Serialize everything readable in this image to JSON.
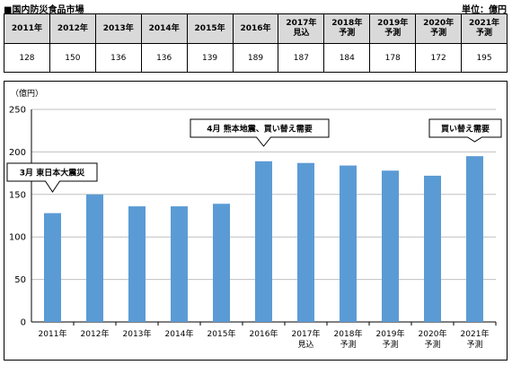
{
  "header": {
    "title": "■国内防災食品市場",
    "unit": "単位：億円"
  },
  "table": {
    "years": [
      "2011年",
      "2012年",
      "2013年",
      "2014年",
      "2015年",
      "2016年",
      "2017年\n見込",
      "2018年\n予測",
      "2019年\n予測",
      "2020年\n予測",
      "2021年\n予測"
    ],
    "values": [
      "128",
      "150",
      "136",
      "136",
      "139",
      "189",
      "187",
      "184",
      "178",
      "172",
      "195"
    ]
  },
  "chart_data": {
    "type": "bar",
    "ylabel": "（億円）",
    "ylim": [
      0,
      250
    ],
    "yticks": [
      0,
      50,
      100,
      150,
      200,
      250
    ],
    "grid": true,
    "legend": "none",
    "bar_color": "#5b9bd5",
    "categories": [
      "2011年",
      "2012年",
      "2013年",
      "2014年",
      "2015年",
      "2016年",
      "2017年\n見込",
      "2018年\n予測",
      "2019年\n予測",
      "2020年\n予測",
      "2021年\n予測"
    ],
    "values": [
      128,
      150,
      136,
      136,
      139,
      189,
      187,
      184,
      178,
      172,
      195
    ],
    "annotations": [
      {
        "text": "3月 東日本大震災",
        "category_index": 0
      },
      {
        "text": "4月 熊本地震、買い替え需要",
        "category_index": 5
      },
      {
        "text": "買い替え需要",
        "category_index": 10
      }
    ]
  }
}
